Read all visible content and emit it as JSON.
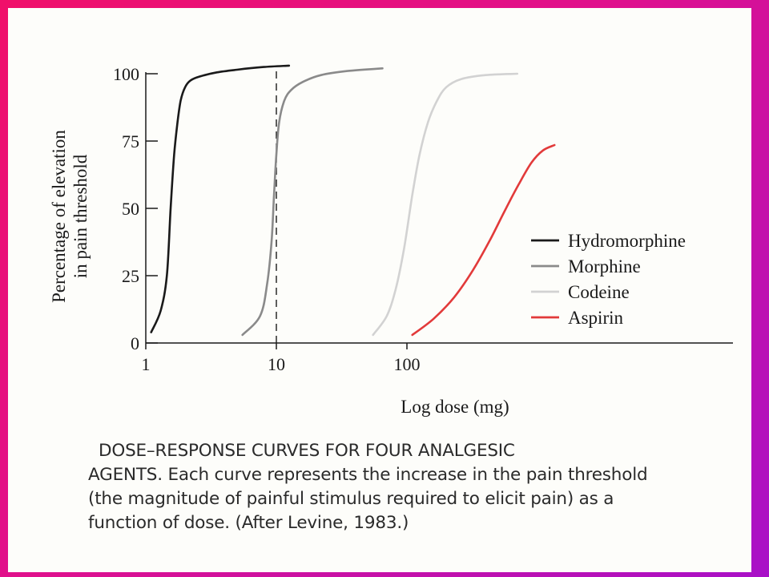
{
  "chart_data": {
    "type": "line",
    "xlabel": "Log dose (mg)",
    "ylabel_lines": [
      "Percentage of elevation",
      "in pain threshold"
    ],
    "x_scale": "log",
    "xlim": [
      1,
      5000
    ],
    "ylim": [
      0,
      100
    ],
    "x_ticks": [
      1,
      10,
      100
    ],
    "x_tick_labels": [
      "1",
      "10",
      "100"
    ],
    "y_ticks": [
      0,
      25,
      50,
      75,
      100
    ],
    "y_tick_labels": [
      "0",
      "25",
      "50",
      "75",
      "100"
    ],
    "grid": false,
    "legend_position": "right",
    "reference_line": {
      "x": 10,
      "style": "dashed"
    },
    "series": [
      {
        "name": "Hydromorphine",
        "color": "#1a1a1a",
        "x": [
          1.1,
          1.3,
          1.45,
          1.55,
          1.65,
          1.75,
          1.85,
          2.0,
          2.2,
          2.6,
          3.5,
          5,
          8,
          12.5
        ],
        "y": [
          4,
          12,
          25,
          50,
          70,
          82,
          90,
          95,
          97.5,
          99,
          100.5,
          101.5,
          102.5,
          103
        ]
      },
      {
        "name": "Morphine",
        "color": "#8a8a8a",
        "x": [
          5.5,
          7.5,
          8.5,
          9.2,
          9.6,
          10,
          10.5,
          11.5,
          13,
          16,
          22,
          35,
          65
        ],
        "y": [
          3,
          10,
          22,
          38,
          55,
          70,
          82,
          90,
          94,
          97,
          99.5,
          101,
          102
        ]
      },
      {
        "name": "Codeine",
        "color": "#d2d2d2",
        "x": [
          55,
          70,
          82,
          95,
          110,
          125,
          145,
          170,
          200,
          260,
          400,
          700
        ],
        "y": [
          3,
          10,
          20,
          35,
          55,
          70,
          82,
          90,
          95,
          98,
          99.5,
          100
        ]
      },
      {
        "name": "Aspirin",
        "color": "#e23a3a",
        "x": [
          110,
          160,
          230,
          320,
          430,
          560,
          720,
          900,
          1100,
          1350
        ],
        "y": [
          3,
          9,
          17,
          27,
          38,
          49,
          59,
          67,
          71.5,
          73.5
        ]
      }
    ]
  },
  "caption": {
    "lines": [
      "DOSE–RESPONSE CURVES FOR FOUR ANALGESIC",
      "AGENTS.  Each curve represents the increase in the pain threshold",
      "(the magnitude of painful stimulus required to elicit pain) as a",
      "function of dose. (After Levine, 1983.)"
    ]
  }
}
